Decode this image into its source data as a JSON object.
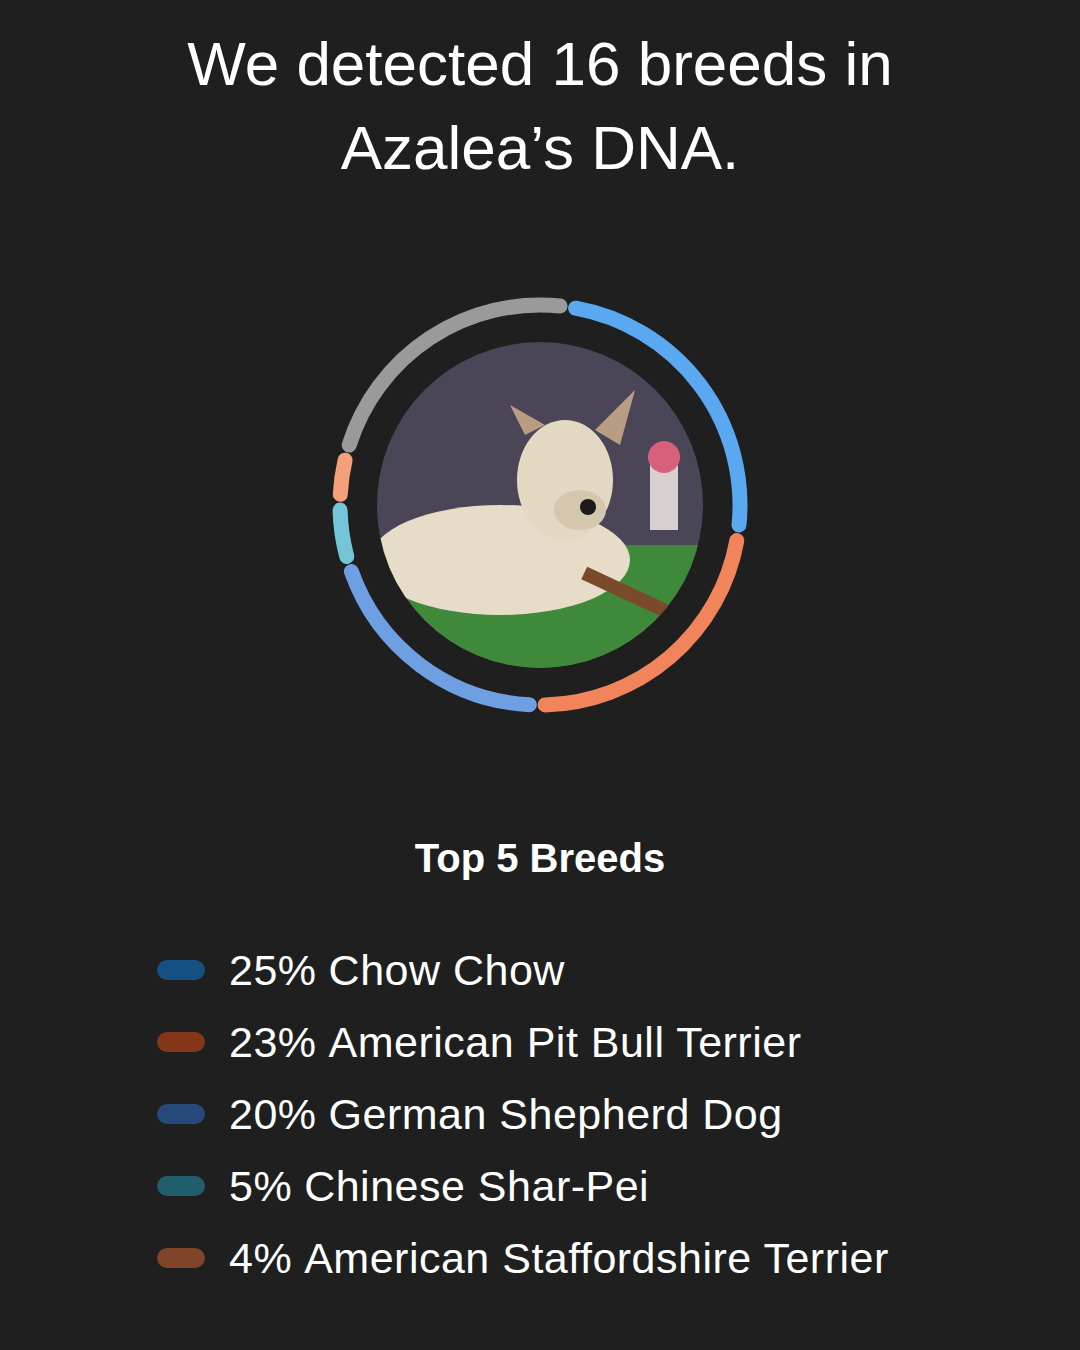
{
  "chart_data": {
    "type": "pie",
    "title": "We detected 16 breeds in Azalea’s DNA.",
    "legend_title": "Top 5 Breeds",
    "categories": [
      "Chow Chow",
      "American Pit Bull Terrier",
      "German Shepherd Dog",
      "Chinese Shar-Pei",
      "American Staffordshire Terrier",
      null
    ],
    "values": [
      25,
      23,
      20,
      5,
      4,
      23
    ],
    "value_labels": [
      "25%",
      "23%",
      "20%",
      "5%",
      "4%",
      null
    ],
    "colors": [
      "#5aa9f0",
      "#f2845c",
      "#6f9fe3",
      "#72c6d8",
      "#f4a07a",
      "#9a9a9a"
    ]
  }
}
